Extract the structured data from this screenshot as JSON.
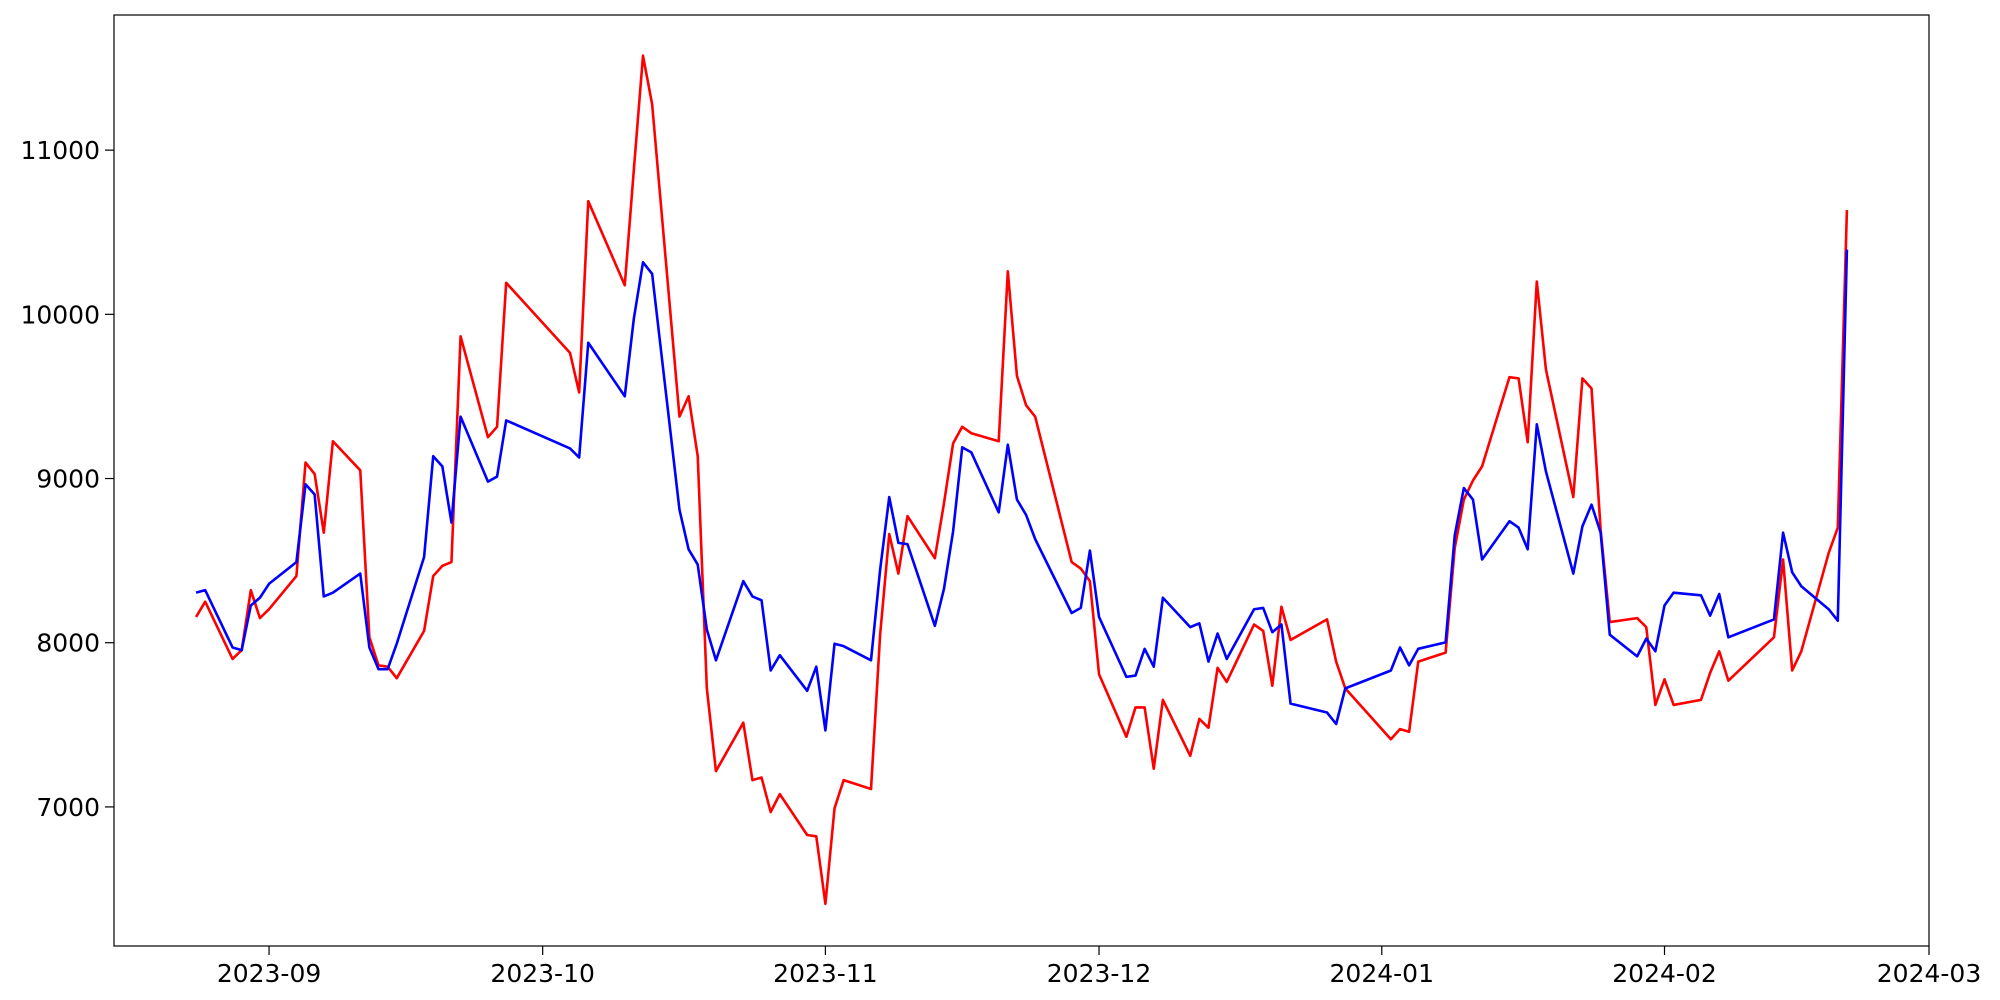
{
  "chart_data": {
    "type": "line",
    "x": [
      "2023-08-24",
      "2023-08-25",
      "2023-08-28",
      "2023-08-29",
      "2023-08-30",
      "2023-08-31",
      "2023-09-01",
      "2023-09-04",
      "2023-09-05",
      "2023-09-06",
      "2023-09-07",
      "2023-09-08",
      "2023-09-11",
      "2023-09-12",
      "2023-09-13",
      "2023-09-14",
      "2023-09-15",
      "2023-09-18",
      "2023-09-19",
      "2023-09-20",
      "2023-09-21",
      "2023-09-22",
      "2023-09-25",
      "2023-09-26",
      "2023-09-27",
      "2023-10-04",
      "2023-10-05",
      "2023-10-06",
      "2023-10-10",
      "2023-10-11",
      "2023-10-12",
      "2023-10-13",
      "2023-10-16",
      "2023-10-17",
      "2023-10-18",
      "2023-10-19",
      "2023-10-20",
      "2023-10-23",
      "2023-10-24",
      "2023-10-25",
      "2023-10-26",
      "2023-10-27",
      "2023-10-30",
      "2023-10-31",
      "2023-11-01",
      "2023-11-02",
      "2023-11-03",
      "2023-11-06",
      "2023-11-07",
      "2023-11-08",
      "2023-11-09",
      "2023-11-10",
      "2023-11-13",
      "2023-11-14",
      "2023-11-15",
      "2023-11-16",
      "2023-11-17",
      "2023-11-20",
      "2023-11-21",
      "2023-11-22",
      "2023-11-23",
      "2023-11-24",
      "2023-11-28",
      "2023-11-29",
      "2023-11-30",
      "2023-12-01",
      "2023-12-04",
      "2023-12-05",
      "2023-12-06",
      "2023-12-07",
      "2023-12-08",
      "2023-12-11",
      "2023-12-12",
      "2023-12-13",
      "2023-12-14",
      "2023-12-15",
      "2023-12-18",
      "2023-12-19",
      "2023-12-20",
      "2023-12-21",
      "2023-12-22",
      "2023-12-26",
      "2023-12-27",
      "2023-12-28",
      "2024-01-02",
      "2024-01-03",
      "2024-01-04",
      "2024-01-05",
      "2024-01-08",
      "2024-01-09",
      "2024-01-10",
      "2024-01-11",
      "2024-01-12",
      "2024-01-15",
      "2024-01-16",
      "2024-01-17",
      "2024-01-18",
      "2024-01-19",
      "2024-01-22",
      "2024-01-23",
      "2024-01-24",
      "2024-01-25",
      "2024-01-26",
      "2024-01-29",
      "2024-01-30",
      "2024-01-31",
      "2024-02-01",
      "2024-02-02",
      "2024-02-05",
      "2024-02-06",
      "2024-02-07",
      "2024-02-08",
      "2024-02-13",
      "2024-02-14",
      "2024-02-15",
      "2024-02-16",
      "2024-02-19",
      "2024-02-20",
      "2024-02-21"
    ],
    "series": [
      {
        "color": "#ff0000",
        "values": [
          8157,
          8250,
          7901,
          7955,
          8320,
          8150,
          8204,
          8406,
          9097,
          9027,
          8670,
          9227,
          9050,
          8033,
          7862,
          7854,
          7784,
          8072,
          8406,
          8468,
          8491,
          9866,
          9252,
          9315,
          10192,
          9765,
          9524,
          10689,
          10177,
          10883,
          11575,
          11280,
          9377,
          9501,
          9136,
          7722,
          7218,
          7513,
          7163,
          7179,
          6969,
          7078,
          6829,
          6821,
          6410,
          6992,
          7163,
          7109,
          8049,
          8662,
          8421,
          8771,
          8515,
          8849,
          9214,
          9315,
          9276,
          9227,
          10262,
          9625,
          9447,
          9377,
          8491,
          8452,
          8375,
          7808,
          7427,
          7606,
          7606,
          7233,
          7652,
          7311,
          7536,
          7482,
          7847,
          7761,
          8111,
          8072,
          7738,
          8219,
          8017,
          8142,
          7885,
          7722,
          7412,
          7474,
          7458,
          7885,
          7940,
          8577,
          8872,
          8988,
          9074,
          9617,
          9610,
          9221,
          10200,
          9664,
          8887,
          9610,
          9548,
          8685,
          8126,
          8150,
          8095,
          7621,
          7777,
          7621,
          7652,
          7816,
          7948,
          7769,
          8033,
          8507,
          7831,
          7948,
          8546,
          8701,
          10635
        ]
      },
      {
        "color": "#0000ff",
        "values": [
          8305,
          8320,
          7971,
          7955,
          8227,
          8274,
          8359,
          8491,
          8965,
          8903,
          8282,
          8305,
          8421,
          7971,
          7839,
          7839,
          7994,
          8522,
          9136,
          9074,
          8732,
          9377,
          8981,
          9012,
          9354,
          9183,
          9128,
          9827,
          9501,
          9975,
          10317,
          10247,
          8810,
          8569,
          8476,
          8080,
          7893,
          8375,
          8282,
          8258,
          7831,
          7924,
          7707,
          7854,
          7466,
          7994,
          7979,
          7893,
          8445,
          8887,
          8608,
          8600,
          8103,
          8328,
          8678,
          9190,
          9159,
          8794,
          9206,
          8872,
          8779,
          8631,
          8181,
          8212,
          8561,
          8157,
          7792,
          7800,
          7963,
          7854,
          8274,
          8095,
          8118,
          7885,
          8056,
          7901,
          8204,
          8212,
          8064,
          8111,
          7629,
          7575,
          7505,
          7722,
          7831,
          7971,
          7862,
          7963,
          8002,
          8654,
          8942,
          8872,
          8507,
          8740,
          8701,
          8569,
          9330,
          9043,
          8421,
          8709,
          8841,
          8670,
          8049,
          7917,
          8025,
          7948,
          8227,
          8305,
          8289,
          8165,
          8297,
          8033,
          8142,
          8670,
          8429,
          8344,
          8204,
          8134,
          10394
        ]
      }
    ],
    "xlim": [
      "2023-08-15",
      "2024-03-01"
    ],
    "xticks": [
      "2023-09",
      "2023-10",
      "2023-11",
      "2023-12",
      "2024-01",
      "2024-02",
      "2024-03"
    ],
    "ylim": [
      6153,
      11823
    ],
    "yticks": [
      7000,
      8000,
      9000,
      10000,
      11000
    ]
  }
}
